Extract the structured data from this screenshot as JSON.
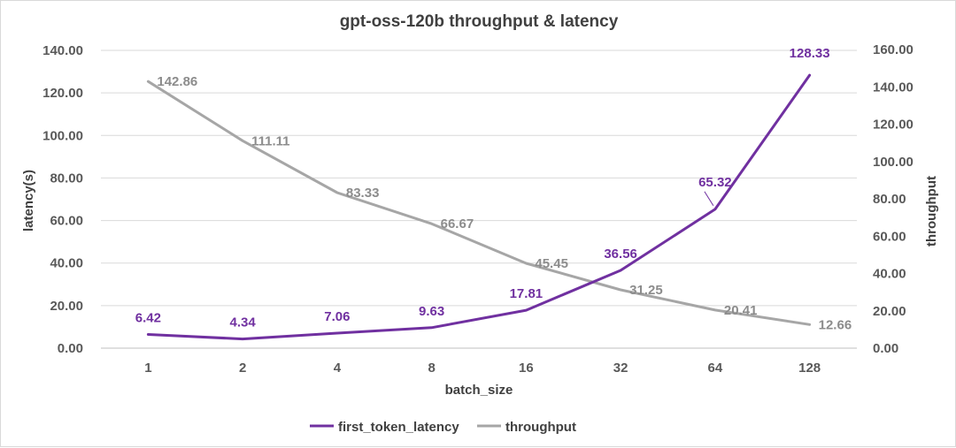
{
  "chart_data": {
    "type": "line",
    "title": "gpt-oss-120b throughput & latency",
    "xlabel": "batch_size",
    "ylabel_left": "latency(s)",
    "ylabel_right": "throughput",
    "categories": [
      "1",
      "2",
      "4",
      "8",
      "16",
      "32",
      "64",
      "128"
    ],
    "ylim_left": [
      0,
      140
    ],
    "ylim_right": [
      0,
      160
    ],
    "yticks_left": [
      "0.00",
      "20.00",
      "40.00",
      "60.00",
      "80.00",
      "100.00",
      "120.00",
      "140.00"
    ],
    "yticks_right": [
      "0.00",
      "20.00",
      "40.00",
      "60.00",
      "80.00",
      "100.00",
      "120.00",
      "140.00",
      "160.00"
    ],
    "grid": true,
    "legend_position": "bottom",
    "series": [
      {
        "name": "first_token_latency",
        "axis": "left",
        "color": "#7030a0",
        "values": [
          6.42,
          4.34,
          7.06,
          9.63,
          17.81,
          36.56,
          65.32,
          128.33
        ],
        "labels": [
          "6.42",
          "4.34",
          "7.06",
          "9.63",
          "17.81",
          "36.56",
          "65.32",
          "128.33"
        ]
      },
      {
        "name": "throughput",
        "axis": "right",
        "color": "#a6a6a6",
        "values": [
          142.86,
          111.11,
          83.33,
          66.67,
          45.45,
          31.25,
          20.41,
          12.66
        ],
        "labels": [
          "142.86",
          "111.11",
          "83.33",
          "66.67",
          "45.45",
          "31.25",
          "20.41",
          "12.66"
        ]
      }
    ]
  }
}
